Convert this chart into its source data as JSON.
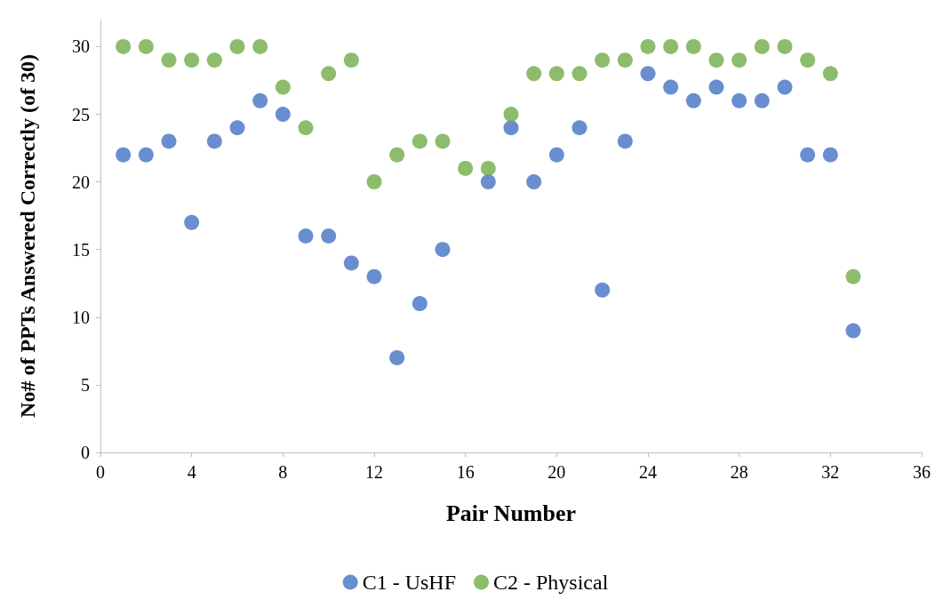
{
  "chart_data": {
    "type": "scatter",
    "xlabel": "Pair Number",
    "ylabel": "No# of PPTs Answered Correctly (of 30)",
    "x": [
      1,
      2,
      3,
      4,
      5,
      6,
      7,
      8,
      9,
      10,
      11,
      12,
      13,
      14,
      15,
      16,
      17,
      18,
      19,
      20,
      21,
      22,
      23,
      24,
      25,
      26,
      27,
      28,
      29,
      30,
      31,
      32,
      33
    ],
    "series": [
      {
        "name": "C1 - UsHF",
        "color": "#4472c4",
        "values": [
          22,
          22,
          23,
          17,
          23,
          24,
          26,
          25,
          16,
          16,
          14,
          13,
          7,
          11,
          15,
          null,
          20,
          24,
          20,
          22,
          24,
          12,
          23,
          28,
          27,
          26,
          27,
          26,
          26,
          27,
          22,
          22,
          9
        ]
      },
      {
        "name": "C2 - Physical",
        "color": "#70ad47",
        "values": [
          30,
          30,
          29,
          29,
          29,
          30,
          30,
          27,
          24,
          28,
          29,
          20,
          22,
          23,
          23,
          21,
          21,
          25,
          28,
          28,
          28,
          29,
          29,
          30,
          30,
          30,
          29,
          29,
          30,
          30,
          29,
          28,
          13
        ]
      }
    ],
    "xlim": [
      0,
      36
    ],
    "xticks": [
      0,
      4,
      8,
      12,
      16,
      20,
      24,
      28,
      32,
      36
    ],
    "ylim": [
      0,
      32
    ],
    "yticks": [
      0,
      5,
      10,
      15,
      20,
      25,
      30
    ],
    "grid": false,
    "legend": "bottom",
    "marker": "circle"
  }
}
